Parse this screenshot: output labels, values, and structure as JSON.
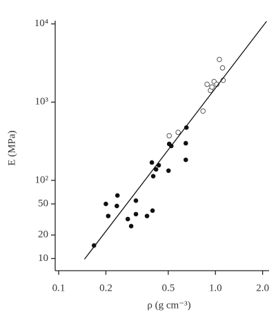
{
  "chart_data": {
    "type": "scatter",
    "xlabel": "ρ (g cm⁻³)",
    "ylabel": "E (MPa)",
    "xscale": "log",
    "yscale": "log",
    "xlim": [
      0.095,
      2.2
    ],
    "ylim": [
      7,
      11000
    ],
    "xticks": [
      0.1,
      0.2,
      0.5,
      {
        "value": 1,
        "label": "1.0"
      },
      {
        "value": 2,
        "label": "2.0"
      }
    ],
    "yticks": [
      10,
      20,
      50,
      {
        "value": 100,
        "label": "10²"
      },
      {
        "value": 1000,
        "label": "10³"
      },
      {
        "value": 10000,
        "label": "10⁴"
      }
    ],
    "series": [
      {
        "style": "filled",
        "color": "#111111",
        "x": [
          0.168,
          0.2,
          0.207,
          0.237,
          0.235,
          0.276,
          0.29,
          0.311,
          0.311,
          0.366,
          0.397,
          0.393,
          0.401,
          0.418,
          0.435,
          0.502,
          0.507,
          0.523,
          0.653,
          0.647,
          0.647
        ],
        "values": [
          14.7,
          50,
          35,
          64,
          47,
          32,
          26,
          55,
          37,
          35,
          41,
          169,
          113,
          138,
          156,
          133,
          292,
          275,
          473,
          298,
          183
        ]
      },
      {
        "style": "open",
        "color": "#555555",
        "x": [
          0.507,
          0.578,
          0.833,
          0.885,
          0.93,
          0.95,
          0.98,
          1.02,
          1.06,
          1.11,
          1.12
        ],
        "values": [
          372,
          411,
          769,
          1690,
          1410,
          1560,
          1830,
          1690,
          3500,
          2740,
          1900
        ]
      },
      {
        "style": "line",
        "color": "#111111",
        "x": [
          0.146,
          2.12
        ],
        "values": [
          9.8,
          10800
        ]
      }
    ]
  }
}
